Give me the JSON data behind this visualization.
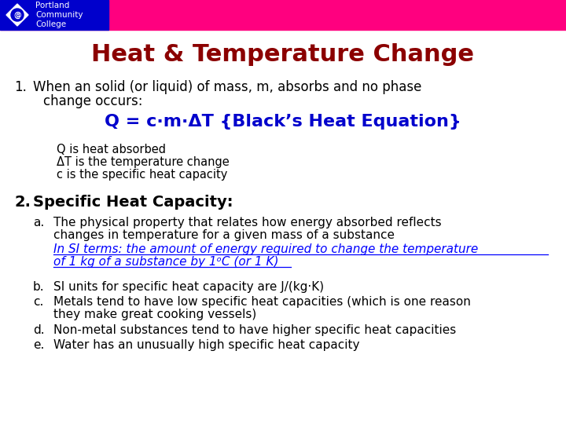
{
  "title": "Heat & Temperature Change",
  "title_color": "#8B0000",
  "background_color": "#FFFFFF",
  "header_bar_color1": "#0000CC",
  "header_bar_color2": "#FF007F",
  "logo_text": "Portland\nCommunity\nCollege",
  "equation": "Q = c·m·ΔT {Black’s Heat Equation}",
  "equation_color": "#0000CC",
  "body_text_color": "#000000",
  "italic_link_color": "#0000FF",
  "item1_line1": "When an solid (or liquid) of mass, m, absorbs and no phase",
  "item1_line2": "change occurs:",
  "item1_sub1": "Q is heat absorbed",
  "item1_sub2": "ΔT is the temperature change",
  "item1_sub3": "c is the specific heat capacity",
  "item2_header": "Specific Heat Capacity:",
  "item2a_line1": "The physical property that relates how energy absorbed reflects",
  "item2a_line2": "changes in temperature for a given mass of a substance",
  "item2a_italic1": "In SI terms: the amount of energy required to change the temperature",
  "item2a_italic2": "of 1 kg of a substance by 1ᵒC (or 1 K)",
  "item2b": "SI units for specific heat capacity are J/(kg·K)",
  "item2c_line1": "Metals tend to have low specific heat capacities (which is one reason",
  "item2c_line2": "they make great cooking vessels)",
  "item2d": "Non-metal substances tend to have higher specific heat capacities",
  "item2e": "Water has an unusually high specific heat capacity"
}
